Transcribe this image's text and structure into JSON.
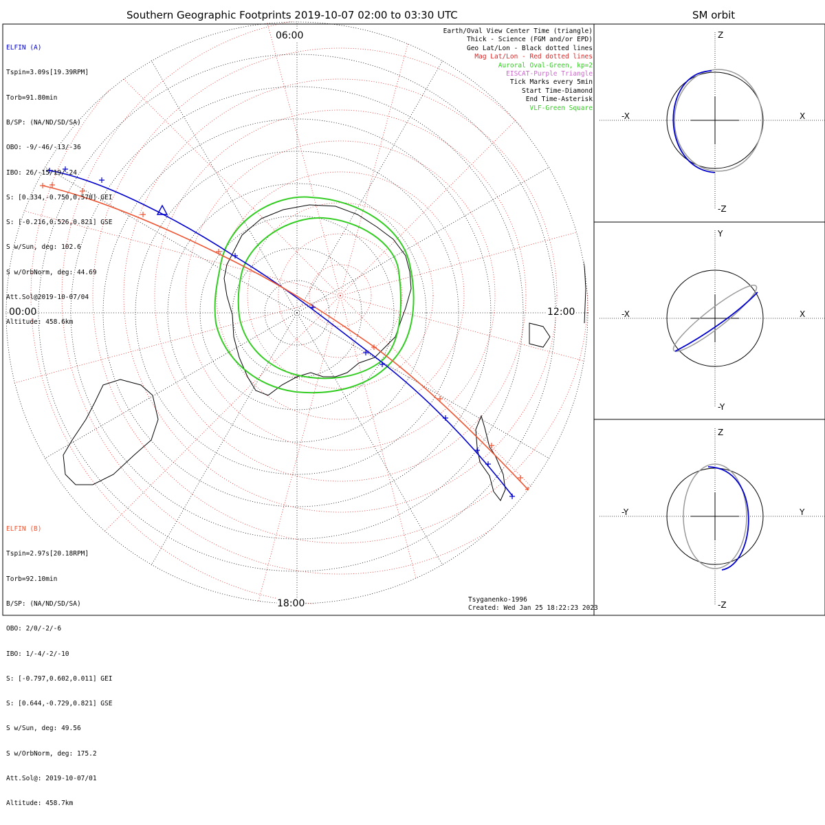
{
  "main_title": "Southern Geographic Footprints 2019-10-07 02:00 to 03:30 UTC",
  "orbit_title": "SM orbit",
  "colors": {
    "elfin_a": "#0000cc",
    "elfin_b": "#ee5533",
    "geo_grid": "#000000",
    "mag_grid": "#dd2222",
    "aurora": "#33cc22",
    "eiscat": "#cc66cc",
    "orbit_other": "#999999"
  },
  "elfin_a": {
    "name": "ELFIN (A)",
    "lines": [
      "Tspin=3.09s[19.39RPM]",
      "Torb=91.80min",
      "B/SP: (NA/ND/SD/SA)",
      "OBO: -9/-46/-13/-36",
      "IBO: 26/-15/19/-24",
      "S: [0.334,-0.750,0.570] GEI",
      "S: [-0.216,0.526,0.821] GSE",
      "S w/Sun, deg: 102.6",
      "S w/OrbNorm, deg: 44.69",
      "Att.Sol@2019-10-07/04",
      "Altitude: 458.6km"
    ]
  },
  "elfin_b": {
    "name": "ELFIN (B)",
    "lines": [
      "Tspin=2.97s[20.18RPM]",
      "Torb=92.10min",
      "B/SP: (NA/ND/SD/SA)",
      "OBO: 2/0/-2/-6",
      "IBO: 1/-4/-2/-10",
      "S: [-0.797,0.602,0.011] GEI",
      "S: [0.644,-0.729,0.821] GSE",
      "S w/Sun, deg: 49.56",
      "S w/OrbNorm, deg: 175.2",
      "Att.Sol@: 2019-10-07/01",
      "Altitude: 458.7km"
    ]
  },
  "legend": [
    {
      "text": "Earth/Oval View Center Time (triangle)",
      "color": "#000000"
    },
    {
      "text": "Thick - Science (FGM and/or EPD)",
      "color": "#000000"
    },
    {
      "text": "Geo Lat/Lon - Black dotted lines",
      "color": "#000000"
    },
    {
      "text": "Mag Lat/Lon - Red dotted lines",
      "color": "#dd2222"
    },
    {
      "text": "Auroral Oval-Green, kp=2",
      "color": "#33cc22"
    },
    {
      "text": "EISCAT-Purple Triangle",
      "color": "#cc66cc"
    },
    {
      "text": "Tick Marks every 5min",
      "color": "#000000"
    },
    {
      "text": "Start Time-Diamond",
      "color": "#000000"
    },
    {
      "text": "End Time-Asterisk",
      "color": "#000000"
    },
    {
      "text": "VLF-Green Square",
      "color": "#33cc22"
    }
  ],
  "map_labels": {
    "top": "06:00",
    "left": "00:00",
    "right": "12:00",
    "bottom": "18:00"
  },
  "credit": {
    "model": "Tsyganenko-1996",
    "created": "Created: Wed Jan 25 18:22:23 2023"
  },
  "orbit_panels": [
    {
      "up": "Z",
      "down": "-Z",
      "left": "-X",
      "right": "X"
    },
    {
      "up": "Y",
      "down": "-Y",
      "left": "-X",
      "right": "X"
    },
    {
      "up": "Z",
      "down": "-Z",
      "left": "-Y",
      "right": "Y"
    }
  ]
}
